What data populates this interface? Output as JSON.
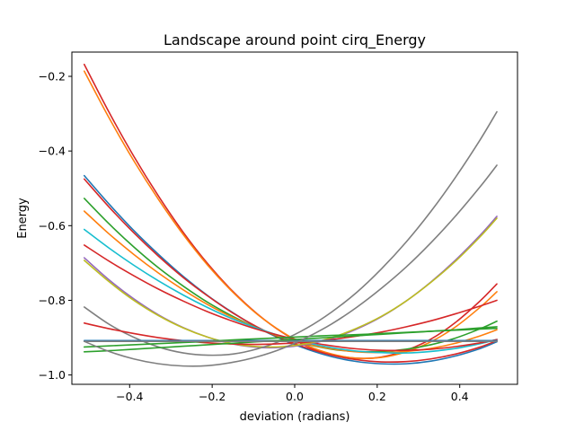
{
  "chart_data": {
    "type": "line",
    "title": "Landscape around point cirq_Energy",
    "xlabel": "deviation (radians)",
    "ylabel": "Energy",
    "xlim": [
      -0.54,
      0.54
    ],
    "ylim": [
      -1.025,
      -0.135
    ],
    "xticks": [
      {
        "value": -0.4,
        "label": "−0.4"
      },
      {
        "value": -0.2,
        "label": "−0.2"
      },
      {
        "value": 0.0,
        "label": "0.0"
      },
      {
        "value": 0.2,
        "label": "0.2"
      },
      {
        "value": 0.4,
        "label": "0.4"
      }
    ],
    "yticks": [
      {
        "value": -1.0,
        "label": "−1.0"
      },
      {
        "value": -0.8,
        "label": "−0.8"
      },
      {
        "value": -0.6,
        "label": "−0.6"
      },
      {
        "value": -0.4,
        "label": "−0.4"
      },
      {
        "value": -0.2,
        "label": "−0.2"
      }
    ],
    "grid": false,
    "legend": false,
    "x": [
      -0.51,
      -0.45,
      -0.39,
      -0.33,
      -0.27,
      -0.21,
      -0.15,
      -0.09,
      -0.03,
      0.03,
      0.09,
      0.15,
      0.21,
      0.27,
      0.33,
      0.39,
      0.45,
      0.49
    ],
    "series": [
      {
        "color": "#d62728",
        "values": [
          -0.168,
          -0.296,
          -0.414,
          -0.521,
          -0.618,
          -0.703,
          -0.776,
          -0.837,
          -0.886,
          -0.923,
          -0.945,
          -0.955,
          -0.952,
          -0.934,
          -0.904,
          -0.859,
          -0.801,
          -0.756
        ]
      },
      {
        "color": "#ff7f0e",
        "values": [
          -0.186,
          -0.311,
          -0.426,
          -0.53,
          -0.624,
          -0.707,
          -0.778,
          -0.838,
          -0.885,
          -0.921,
          -0.944,
          -0.955,
          -0.953,
          -0.938,
          -0.911,
          -0.871,
          -0.818,
          -0.777
        ]
      },
      {
        "color": "#1f77b4",
        "values": [
          -0.466,
          -0.542,
          -0.613,
          -0.677,
          -0.736,
          -0.788,
          -0.833,
          -0.873,
          -0.905,
          -0.931,
          -0.951,
          -0.964,
          -0.97,
          -0.97,
          -0.963,
          -0.949,
          -0.929,
          -0.911
        ]
      },
      {
        "color": "#d62728",
        "values": [
          -0.475,
          -0.55,
          -0.619,
          -0.682,
          -0.739,
          -0.789,
          -0.834,
          -0.872,
          -0.903,
          -0.928,
          -0.947,
          -0.959,
          -0.965,
          -0.964,
          -0.957,
          -0.944,
          -0.925,
          -0.908
        ]
      },
      {
        "color": "#2ca02c",
        "values": [
          -0.527,
          -0.595,
          -0.657,
          -0.713,
          -0.762,
          -0.806,
          -0.843,
          -0.875,
          -0.9,
          -0.918,
          -0.931,
          -0.937,
          -0.937,
          -0.931,
          -0.919,
          -0.901,
          -0.876,
          -0.856
        ]
      },
      {
        "color": "#ff7f0e",
        "values": [
          -0.561,
          -0.622,
          -0.677,
          -0.727,
          -0.772,
          -0.812,
          -0.846,
          -0.875,
          -0.899,
          -0.917,
          -0.93,
          -0.938,
          -0.94,
          -0.937,
          -0.929,
          -0.915,
          -0.895,
          -0.879
        ]
      },
      {
        "color": "#17becf",
        "values": [
          -0.61,
          -0.66,
          -0.706,
          -0.748,
          -0.786,
          -0.82,
          -0.85,
          -0.875,
          -0.897,
          -0.914,
          -0.927,
          -0.936,
          -0.94,
          -0.941,
          -0.937,
          -0.929,
          -0.916,
          -0.905
        ]
      },
      {
        "color": "#d62728",
        "values": [
          -0.652,
          -0.695,
          -0.734,
          -0.77,
          -0.802,
          -0.831,
          -0.856,
          -0.878,
          -0.896,
          -0.911,
          -0.922,
          -0.93,
          -0.934,
          -0.934,
          -0.931,
          -0.924,
          -0.914,
          -0.905
        ]
      },
      {
        "color": "#9467bd",
        "values": [
          -0.686,
          -0.745,
          -0.796,
          -0.839,
          -0.873,
          -0.899,
          -0.917,
          -0.926,
          -0.926,
          -0.918,
          -0.902,
          -0.877,
          -0.844,
          -0.802,
          -0.751,
          -0.692,
          -0.625,
          -0.575
        ]
      },
      {
        "color": "#bcbd22",
        "values": [
          -0.693,
          -0.75,
          -0.8,
          -0.841,
          -0.874,
          -0.899,
          -0.916,
          -0.924,
          -0.924,
          -0.916,
          -0.9,
          -0.875,
          -0.843,
          -0.802,
          -0.752,
          -0.695,
          -0.629,
          -0.58
        ]
      },
      {
        "color": "#7f7f7f",
        "values": [
          -0.818,
          -0.864,
          -0.899,
          -0.925,
          -0.941,
          -0.947,
          -0.944,
          -0.93,
          -0.907,
          -0.874,
          -0.831,
          -0.779,
          -0.716,
          -0.644,
          -0.562,
          -0.47,
          -0.369,
          -0.295
        ]
      },
      {
        "color": "#d62728",
        "values": [
          -0.861,
          -0.876,
          -0.889,
          -0.9,
          -0.908,
          -0.914,
          -0.917,
          -0.918,
          -0.916,
          -0.912,
          -0.905,
          -0.896,
          -0.885,
          -0.871,
          -0.855,
          -0.836,
          -0.815,
          -0.8
        ]
      },
      {
        "color": "#1f77b4",
        "values": [
          -0.908,
          -0.908,
          -0.908,
          -0.908,
          -0.908,
          -0.908,
          -0.908,
          -0.908,
          -0.908,
          -0.908,
          -0.908,
          -0.908,
          -0.908,
          -0.908,
          -0.908,
          -0.908,
          -0.908,
          -0.908
        ]
      },
      {
        "color": "#2ca02c",
        "values": [
          -0.925,
          -0.922,
          -0.919,
          -0.916,
          -0.913,
          -0.91,
          -0.906,
          -0.903,
          -0.9,
          -0.897,
          -0.894,
          -0.892,
          -0.889,
          -0.886,
          -0.883,
          -0.88,
          -0.877,
          -0.875
        ]
      },
      {
        "color": "#2ca02c",
        "values": [
          -0.938,
          -0.935,
          -0.931,
          -0.927,
          -0.923,
          -0.919,
          -0.915,
          -0.911,
          -0.907,
          -0.903,
          -0.899,
          -0.895,
          -0.891,
          -0.887,
          -0.883,
          -0.879,
          -0.874,
          -0.871
        ]
      },
      {
        "color": "#7f7f7f",
        "values": [
          -0.91,
          -0.91,
          -0.91,
          -0.91,
          -0.91,
          -0.91,
          -0.91,
          -0.91,
          -0.91,
          -0.91,
          -0.91,
          -0.91,
          -0.91,
          -0.91,
          -0.91,
          -0.91,
          -0.91,
          -0.91
        ]
      },
      {
        "color": "#7f7f7f",
        "values": [
          -0.91,
          -0.937,
          -0.957,
          -0.97,
          -0.976,
          -0.975,
          -0.966,
          -0.951,
          -0.929,
          -0.899,
          -0.863,
          -0.819,
          -0.768,
          -0.711,
          -0.646,
          -0.574,
          -0.495,
          -0.438
        ]
      }
    ]
  }
}
